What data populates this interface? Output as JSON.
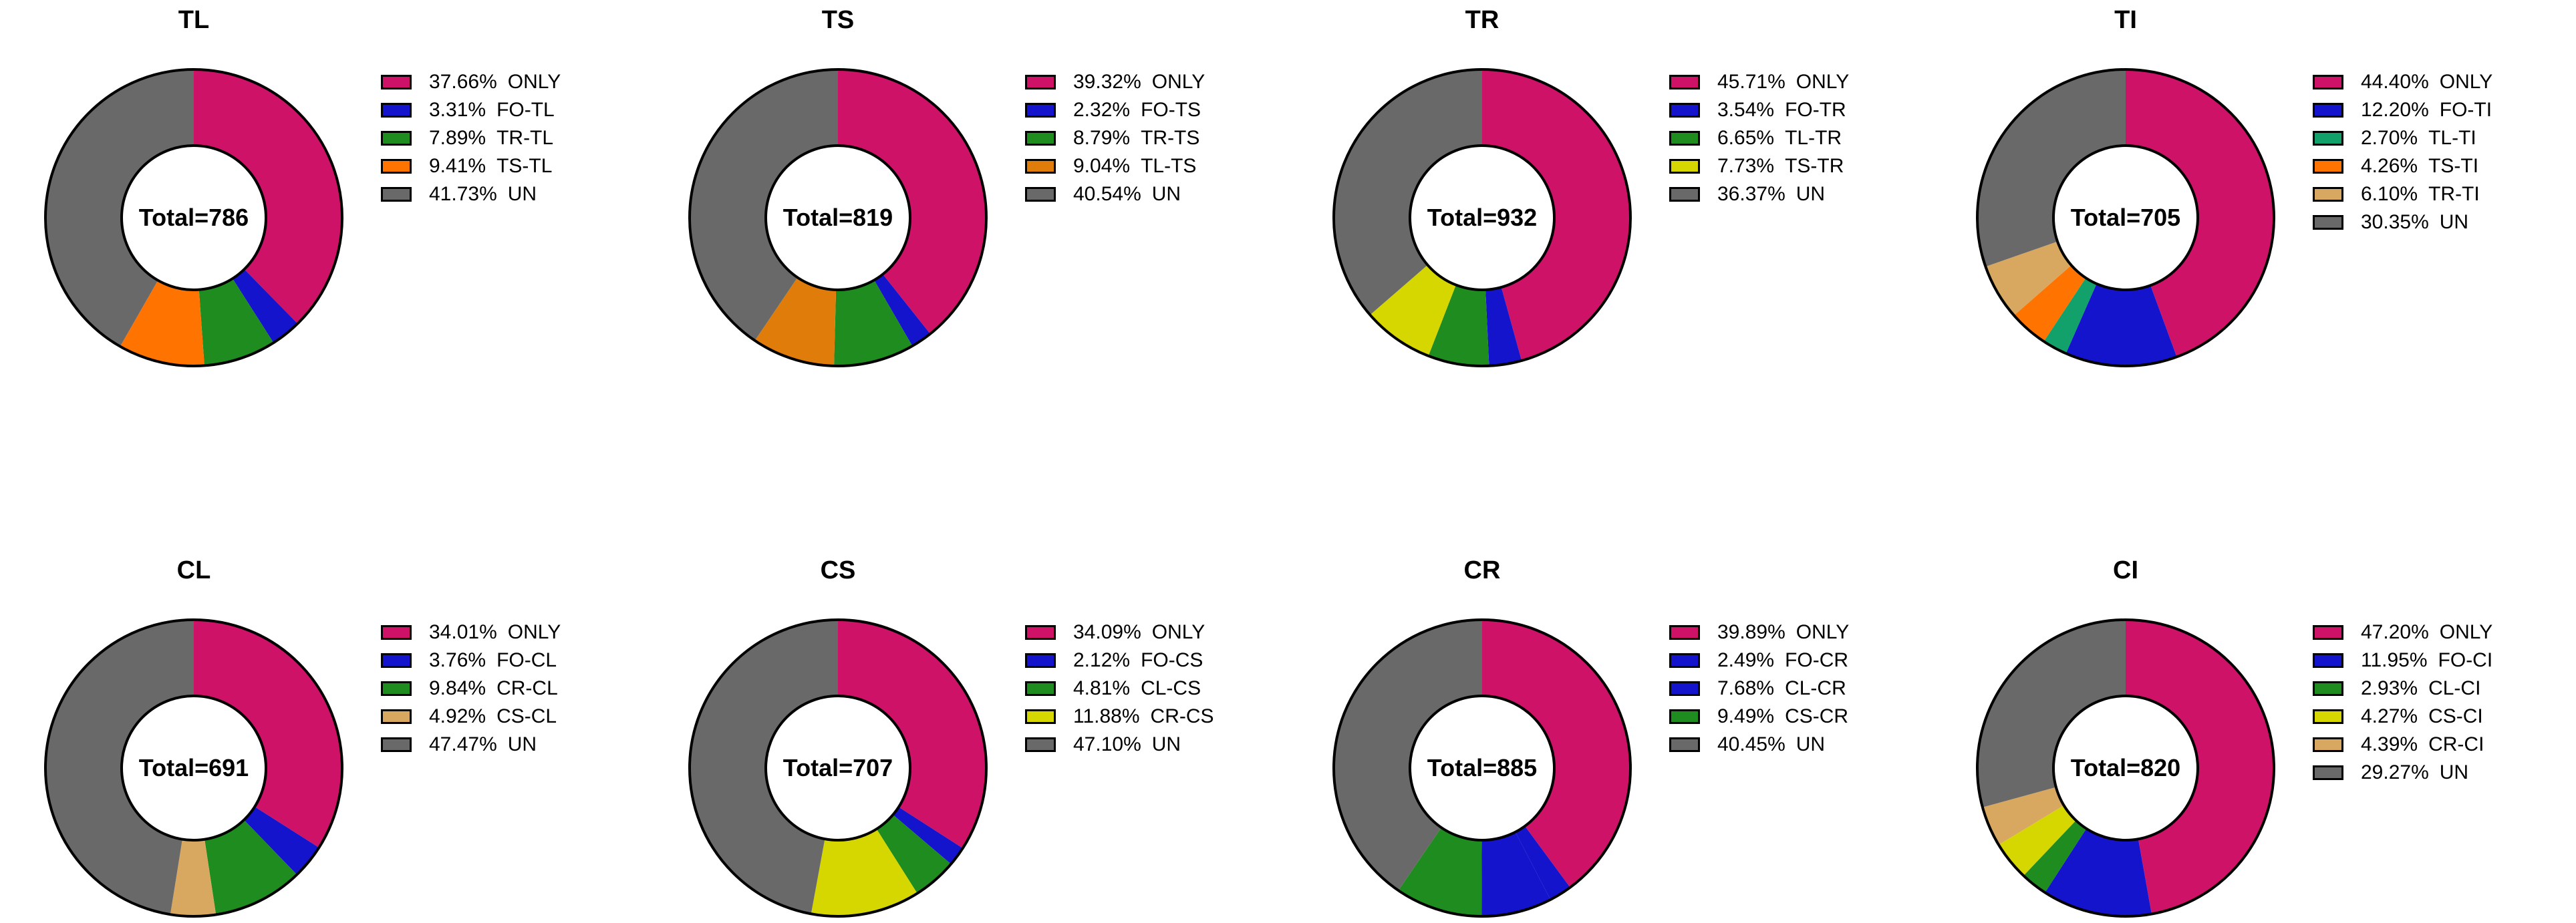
{
  "figure": {
    "background": "#ffffff",
    "center_label_prefix": "Total=",
    "text_color": "#000000",
    "outline_color": "#000000"
  },
  "chart_data": [
    {
      "type": "pie",
      "subtype": "donut",
      "title": "TL",
      "total": 786,
      "center_label": "Total=786",
      "start_angle_deg": 0,
      "direction": "clockwise",
      "legend_position": "right",
      "slices": [
        {
          "label": "ONLY",
          "percent": 37.66,
          "color": "#CE1268"
        },
        {
          "label": "FO-TL",
          "percent": 3.31,
          "color": "#1414CD"
        },
        {
          "label": "TR-TL",
          "percent": 7.89,
          "color": "#1E8C1E"
        },
        {
          "label": "TS-TL",
          "percent": 9.41,
          "color": "#FF7300"
        },
        {
          "label": "UN",
          "percent": 41.73,
          "color": "#696969"
        }
      ]
    },
    {
      "type": "pie",
      "subtype": "donut",
      "title": "TS",
      "total": 819,
      "center_label": "Total=819",
      "start_angle_deg": 0,
      "direction": "clockwise",
      "legend_position": "right",
      "slices": [
        {
          "label": "ONLY",
          "percent": 39.32,
          "color": "#CE1268"
        },
        {
          "label": "FO-TS",
          "percent": 2.32,
          "color": "#1414CD"
        },
        {
          "label": "TR-TS",
          "percent": 8.79,
          "color": "#1E8C1E"
        },
        {
          "label": "TL-TS",
          "percent": 9.04,
          "color": "#E07D0A"
        },
        {
          "label": "UN",
          "percent": 40.54,
          "color": "#696969"
        }
      ]
    },
    {
      "type": "pie",
      "subtype": "donut",
      "title": "TR",
      "total": 932,
      "center_label": "Total=932",
      "start_angle_deg": 0,
      "direction": "clockwise",
      "legend_position": "right",
      "slices": [
        {
          "label": "ONLY",
          "percent": 45.71,
          "color": "#CE1268"
        },
        {
          "label": "FO-TR",
          "percent": 3.54,
          "color": "#1414CD"
        },
        {
          "label": "TL-TR",
          "percent": 6.65,
          "color": "#1E8C1E"
        },
        {
          "label": "TS-TR",
          "percent": 7.73,
          "color": "#D6D600"
        },
        {
          "label": "UN",
          "percent": 36.37,
          "color": "#696969"
        }
      ]
    },
    {
      "type": "pie",
      "subtype": "donut",
      "title": "TI",
      "total": 705,
      "center_label": "Total=705",
      "start_angle_deg": 0,
      "direction": "clockwise",
      "legend_position": "right",
      "slices": [
        {
          "label": "ONLY",
          "percent": 44.4,
          "color": "#CE1268"
        },
        {
          "label": "FO-TI",
          "percent": 12.2,
          "color": "#1414CD"
        },
        {
          "label": "TL-TI",
          "percent": 2.7,
          "color": "#12A06B"
        },
        {
          "label": "TS-TI",
          "percent": 4.26,
          "color": "#FF7300"
        },
        {
          "label": "TR-TI",
          "percent": 6.1,
          "color": "#D8A860"
        },
        {
          "label": "UN",
          "percent": 30.35,
          "color": "#696969"
        }
      ]
    },
    {
      "type": "pie",
      "subtype": "donut",
      "title": "CL",
      "total": 691,
      "center_label": "Total=691",
      "start_angle_deg": 0,
      "direction": "clockwise",
      "legend_position": "right",
      "slices": [
        {
          "label": "ONLY",
          "percent": 34.01,
          "color": "#CE1268"
        },
        {
          "label": "FO-CL",
          "percent": 3.76,
          "color": "#1414CD"
        },
        {
          "label": "CR-CL",
          "percent": 9.84,
          "color": "#1E8C1E"
        },
        {
          "label": "CS-CL",
          "percent": 4.92,
          "color": "#D8A860"
        },
        {
          "label": "UN",
          "percent": 47.47,
          "color": "#696969"
        }
      ]
    },
    {
      "type": "pie",
      "subtype": "donut",
      "title": "CS",
      "total": 707,
      "center_label": "Total=707",
      "start_angle_deg": 0,
      "direction": "clockwise",
      "legend_position": "right",
      "slices": [
        {
          "label": "ONLY",
          "percent": 34.09,
          "color": "#CE1268"
        },
        {
          "label": "FO-CS",
          "percent": 2.12,
          "color": "#1414CD"
        },
        {
          "label": "CL-CS",
          "percent": 4.81,
          "color": "#1E8C1E"
        },
        {
          "label": "CR-CS",
          "percent": 11.88,
          "color": "#D6D600"
        },
        {
          "label": "UN",
          "percent": 47.1,
          "color": "#696969"
        }
      ]
    },
    {
      "type": "pie",
      "subtype": "donut",
      "title": "CR",
      "total": 885,
      "center_label": "Total=885",
      "start_angle_deg": 0,
      "direction": "clockwise",
      "legend_position": "right",
      "slices": [
        {
          "label": "ONLY",
          "percent": 39.89,
          "color": "#CE1268"
        },
        {
          "label": "FO-CR",
          "percent": 2.49,
          "color": "#1414CD"
        },
        {
          "label": "CL-CR",
          "percent": 7.68,
          "color": "#1414CD"
        },
        {
          "label": "CS-CR",
          "percent": 9.49,
          "color": "#1E8C1E"
        },
        {
          "label": "UN",
          "percent": 40.45,
          "color": "#696969"
        }
      ]
    },
    {
      "type": "pie",
      "subtype": "donut",
      "title": "CI",
      "total": 820,
      "center_label": "Total=820",
      "start_angle_deg": 0,
      "direction": "clockwise",
      "legend_position": "right",
      "slices": [
        {
          "label": "ONLY",
          "percent": 47.2,
          "color": "#CE1268"
        },
        {
          "label": "FO-CI",
          "percent": 11.95,
          "color": "#1414CD"
        },
        {
          "label": "CL-CI",
          "percent": 2.93,
          "color": "#1E8C1E"
        },
        {
          "label": "CS-CI",
          "percent": 4.27,
          "color": "#D6D600"
        },
        {
          "label": "CR-CI",
          "percent": 4.39,
          "color": "#D8A860"
        },
        {
          "label": "UN",
          "percent": 29.27,
          "color": "#696969"
        }
      ]
    }
  ]
}
